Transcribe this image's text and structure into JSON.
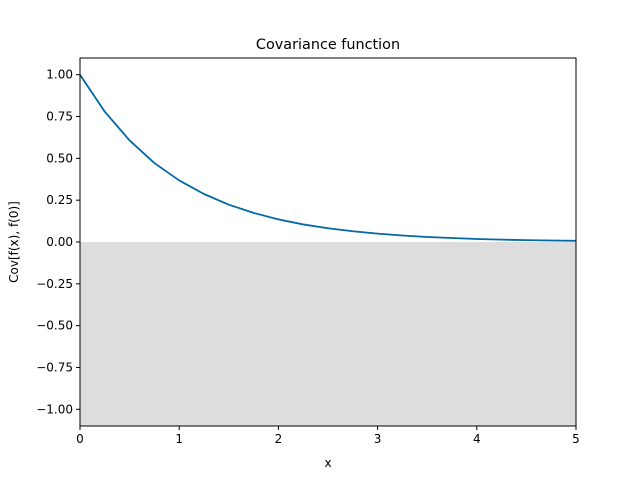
{
  "chart_data": {
    "type": "line",
    "title": "Covariance function",
    "xlabel": "x",
    "ylabel": "Cov[f(x), f(0)]",
    "xlim": [
      0,
      5
    ],
    "ylim": [
      -1.1,
      1.1
    ],
    "x_ticks": [
      0,
      1,
      2,
      3,
      4,
      5
    ],
    "x_tick_labels": [
      "0",
      "1",
      "2",
      "3",
      "4",
      "5"
    ],
    "y_ticks": [
      1.0,
      0.75,
      0.5,
      0.25,
      0.0,
      -0.25,
      -0.5,
      -0.75,
      -1.0
    ],
    "y_tick_labels": [
      "1.00",
      "0.75",
      "0.50",
      "0.25",
      "0.00",
      "−0.25",
      "−0.50",
      "−0.75",
      "−1.00"
    ],
    "grid": false,
    "shaded_region": {
      "y_from": -1.1,
      "y_to": 0.0,
      "color": "#dddddd"
    },
    "series": [
      {
        "color": "#0068a5",
        "x": [
          0,
          0.25,
          0.5,
          0.75,
          1.0,
          1.25,
          1.5,
          1.75,
          2.0,
          2.25,
          2.5,
          2.75,
          3.0,
          3.25,
          3.5,
          3.75,
          4.0,
          4.25,
          4.5,
          4.75,
          5.0
        ],
        "y": [
          1.0,
          0.779,
          0.607,
          0.472,
          0.368,
          0.287,
          0.223,
          0.174,
          0.135,
          0.105,
          0.082,
          0.064,
          0.05,
          0.039,
          0.03,
          0.024,
          0.018,
          0.014,
          0.011,
          0.009,
          0.007
        ]
      }
    ]
  }
}
